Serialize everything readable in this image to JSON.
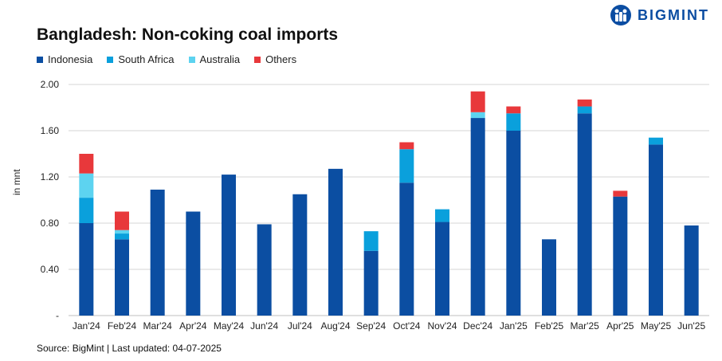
{
  "logo": {
    "text": "BIGMINT"
  },
  "colors": {
    "Indonesia": "#0b4ea2",
    "South Africa": "#0aa0dc",
    "Australia": "#5dd3f0",
    "Others": "#e8383b",
    "grid": "#d4d4d4",
    "axis": "#bfbfbf"
  },
  "chart_data": {
    "type": "bar",
    "stacked": true,
    "title": "Bangladesh: Non-coking coal imports",
    "xlabel": "",
    "ylabel": "in mnt",
    "ylim": [
      0,
      2.0
    ],
    "yticks": [
      0,
      0.4,
      0.8,
      1.2,
      1.6,
      2.0
    ],
    "ytick_labels": [
      "-",
      "0.40",
      "0.80",
      "1.20",
      "1.60",
      "2.00"
    ],
    "grid": true,
    "legend": "top-left",
    "categories": [
      "Jan'24",
      "Feb'24",
      "Mar'24",
      "Apr'24",
      "May'24",
      "Jun'24",
      "Jul'24",
      "Aug'24",
      "Sep'24",
      "Oct'24",
      "Nov'24",
      "Dec'24",
      "Jan'25",
      "Feb'25",
      "Mar'25",
      "Apr'25",
      "May'25",
      "Jun'25"
    ],
    "series": [
      {
        "name": "Indonesia",
        "values": [
          0.8,
          0.66,
          1.09,
          0.9,
          1.22,
          0.79,
          1.05,
          1.27,
          0.56,
          1.15,
          0.81,
          1.71,
          1.6,
          0.66,
          1.75,
          1.03,
          1.48,
          0.78
        ]
      },
      {
        "name": "South Africa",
        "values": [
          0.22,
          0.05,
          0.0,
          0.0,
          0.0,
          0.0,
          0.0,
          0.0,
          0.17,
          0.29,
          0.11,
          0.0,
          0.15,
          0.0,
          0.06,
          0.0,
          0.06,
          0.0
        ]
      },
      {
        "name": "Australia",
        "values": [
          0.21,
          0.03,
          0.0,
          0.0,
          0.0,
          0.0,
          0.0,
          0.0,
          0.0,
          0.0,
          0.0,
          0.05,
          0.0,
          0.0,
          0.0,
          0.0,
          0.0,
          0.0
        ]
      },
      {
        "name": "Others",
        "values": [
          0.17,
          0.16,
          0.0,
          0.0,
          0.0,
          0.0,
          0.0,
          0.0,
          0.0,
          0.06,
          0.0,
          0.18,
          0.06,
          0.0,
          0.06,
          0.05,
          0.0,
          0.0
        ]
      }
    ]
  },
  "source": "Source: BigMint | Last updated: 04-07-2025"
}
